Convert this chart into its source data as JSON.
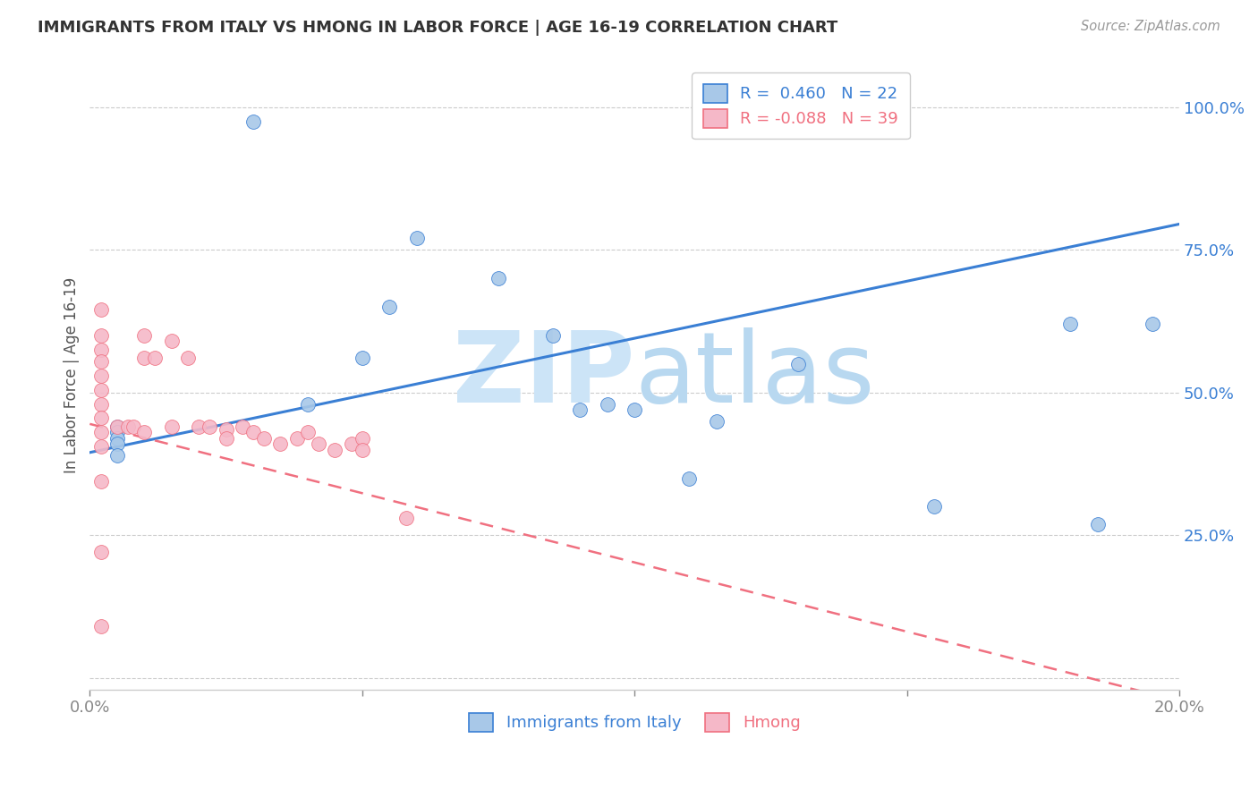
{
  "title": "IMMIGRANTS FROM ITALY VS HMONG IN LABOR FORCE | AGE 16-19 CORRELATION CHART",
  "source": "Source: ZipAtlas.com",
  "ylabel": "In Labor Force | Age 16-19",
  "xlim": [
    0.0,
    0.2
  ],
  "ylim": [
    -0.02,
    1.08
  ],
  "xticks": [
    0.0,
    0.05,
    0.1,
    0.15,
    0.2
  ],
  "xticklabels": [
    "0.0%",
    "",
    "",
    "",
    "20.0%"
  ],
  "yticks": [
    0.0,
    0.25,
    0.5,
    0.75,
    1.0
  ],
  "yticklabels": [
    "",
    "25.0%",
    "50.0%",
    "75.0%",
    "100.0%"
  ],
  "italy_R": 0.46,
  "italy_N": 22,
  "hmong_R": -0.088,
  "hmong_N": 39,
  "italy_color": "#a8c8e8",
  "hmong_color": "#f5b8c8",
  "italy_line_color": "#3a7fd4",
  "hmong_line_color": "#f07080",
  "watermark_color": "#cce4f7",
  "legend_italy_label": "Immigrants from Italy",
  "legend_hmong_label": "Hmong",
  "italy_x": [
    0.03,
    0.005,
    0.005,
    0.005,
    0.005,
    0.005,
    0.04,
    0.05,
    0.055,
    0.06,
    0.075,
    0.085,
    0.09,
    0.095,
    0.1,
    0.11,
    0.115,
    0.13,
    0.155,
    0.185,
    0.18,
    0.195
  ],
  "italy_y": [
    0.975,
    0.44,
    0.43,
    0.42,
    0.41,
    0.39,
    0.48,
    0.56,
    0.65,
    0.77,
    0.7,
    0.6,
    0.47,
    0.48,
    0.47,
    0.35,
    0.45,
    0.55,
    0.3,
    0.27,
    0.62,
    0.62
  ],
  "hmong_x": [
    0.002,
    0.002,
    0.002,
    0.002,
    0.002,
    0.002,
    0.002,
    0.002,
    0.002,
    0.002,
    0.002,
    0.002,
    0.002,
    0.005,
    0.007,
    0.008,
    0.01,
    0.01,
    0.01,
    0.012,
    0.015,
    0.015,
    0.018,
    0.02,
    0.022,
    0.025,
    0.025,
    0.028,
    0.03,
    0.032,
    0.035,
    0.038,
    0.04,
    0.042,
    0.045,
    0.048,
    0.05,
    0.05,
    0.058
  ],
  "hmong_y": [
    0.645,
    0.6,
    0.575,
    0.555,
    0.53,
    0.505,
    0.48,
    0.455,
    0.43,
    0.405,
    0.345,
    0.22,
    0.09,
    0.44,
    0.44,
    0.44,
    0.6,
    0.56,
    0.43,
    0.56,
    0.59,
    0.44,
    0.56,
    0.44,
    0.44,
    0.435,
    0.42,
    0.44,
    0.43,
    0.42,
    0.41,
    0.42,
    0.43,
    0.41,
    0.4,
    0.41,
    0.42,
    0.4,
    0.28
  ],
  "italy_line_x0": 0.0,
  "italy_line_y0": 0.395,
  "italy_line_x1": 0.2,
  "italy_line_y1": 0.795,
  "hmong_line_x0": 0.0,
  "hmong_line_y0": 0.445,
  "hmong_line_x1": 0.2,
  "hmong_line_y1": -0.04
}
